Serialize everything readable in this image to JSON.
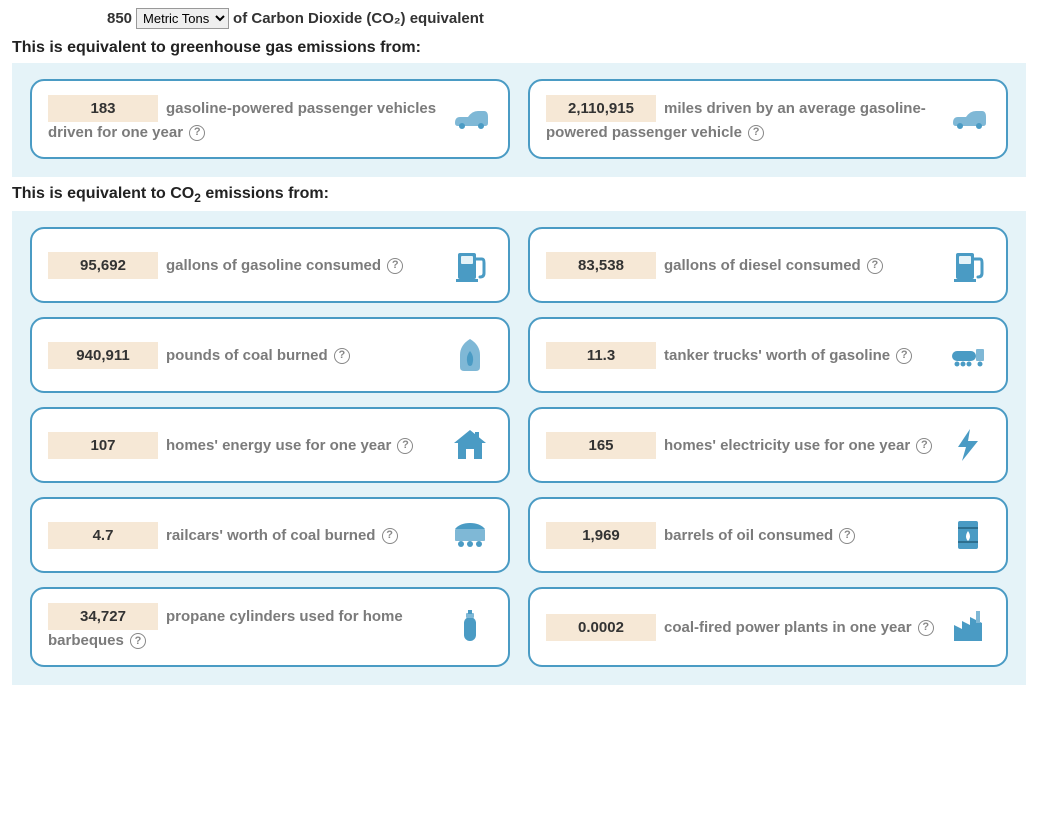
{
  "header": {
    "amount": "850",
    "unit_options": [
      "Metric Tons"
    ],
    "unit_selected": "Metric Tons",
    "suffix": "of Carbon Dioxide (CO₂) equivalent"
  },
  "colors": {
    "panel_bg": "#e5f3f8",
    "card_border": "#4a9bc4",
    "value_bg": "#f6e8d6",
    "icon_primary": "#4a9bc4",
    "icon_light": "#7fb8d6",
    "text_muted": "#7b7b7b"
  },
  "sections": [
    {
      "heading": "This is equivalent to greenhouse gas emissions from:",
      "cards": [
        {
          "value": "183",
          "desc": "gasoline-powered passenger vehicles driven for one year",
          "icon": "car"
        },
        {
          "value": "2,110,915",
          "desc": "miles driven by an average gasoline-powered passenger vehicle",
          "icon": "car"
        }
      ]
    },
    {
      "heading": "This is equivalent to CO₂ emissions from:",
      "cards": [
        {
          "value": "95,692",
          "desc": "gallons of gasoline consumed",
          "icon": "pump"
        },
        {
          "value": "83,538",
          "desc": "gallons of diesel consumed",
          "icon": "pump"
        },
        {
          "value": "940,911",
          "desc": "pounds of coal burned",
          "icon": "flame-bag"
        },
        {
          "value": "11.3",
          "desc": "tanker trucks' worth of gasoline",
          "icon": "tanker"
        },
        {
          "value": "107",
          "desc": "homes' energy use for one year",
          "icon": "house"
        },
        {
          "value": "165",
          "desc": "homes' electricity use for one year",
          "icon": "bolt"
        },
        {
          "value": "4.7",
          "desc": "railcars' worth of coal burned",
          "icon": "railcar"
        },
        {
          "value": "1,969",
          "desc": "barrels of oil consumed",
          "icon": "barrel"
        },
        {
          "value": "34,727",
          "desc": "propane cylinders used for home barbeques",
          "icon": "propane"
        },
        {
          "value": "0.0002",
          "desc": "coal-fired power plants in one year",
          "icon": "factory"
        }
      ]
    }
  ]
}
